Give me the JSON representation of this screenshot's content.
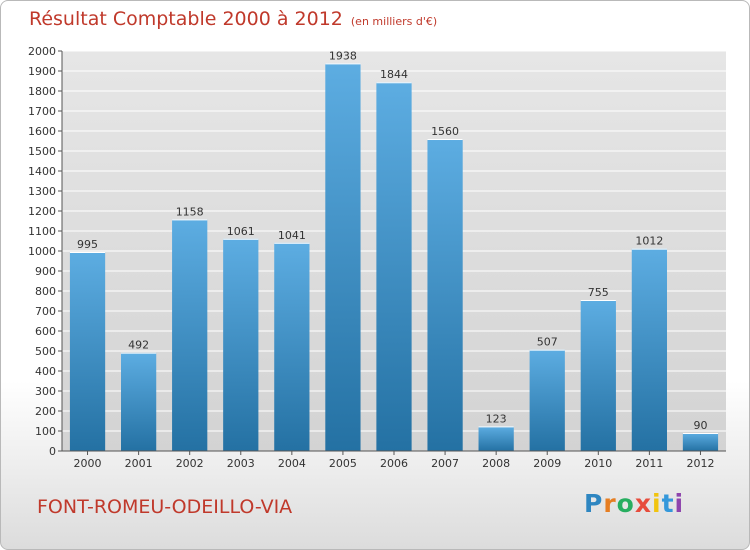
{
  "header": {
    "title": "Résultat Comptable 2000 à 2012",
    "subtitle": "(en milliers d'€)"
  },
  "footer": {
    "commune": "FONT-ROMEU-ODEILLO-VIA",
    "logo_letters": [
      "P",
      "r",
      "o",
      "x",
      "i",
      "t",
      "i"
    ],
    "logo_colors": [
      "#2e86c1",
      "#e67e22",
      "#27ae60",
      "#e74c3c",
      "#f1c40f",
      "#3498db",
      "#8e44ad"
    ]
  },
  "colors": {
    "bar_top": "#5dade2",
    "bar_bottom": "#2471a3",
    "title": "#c0392b"
  },
  "chart_data": {
    "type": "bar",
    "title": "Résultat Comptable 2000 à 2012",
    "subtitle": "(en milliers d'€)",
    "categories": [
      "2000",
      "2001",
      "2002",
      "2003",
      "2004",
      "2005",
      "2006",
      "2007",
      "2008",
      "2009",
      "2010",
      "2011",
      "2012"
    ],
    "values": [
      995,
      492,
      1158,
      1061,
      1041,
      1938,
      1844,
      1560,
      123,
      507,
      755,
      1012,
      90
    ],
    "ylim": [
      0,
      2000
    ],
    "ytick_step": 100,
    "xlabel": "",
    "ylabel": "",
    "grid": true
  }
}
